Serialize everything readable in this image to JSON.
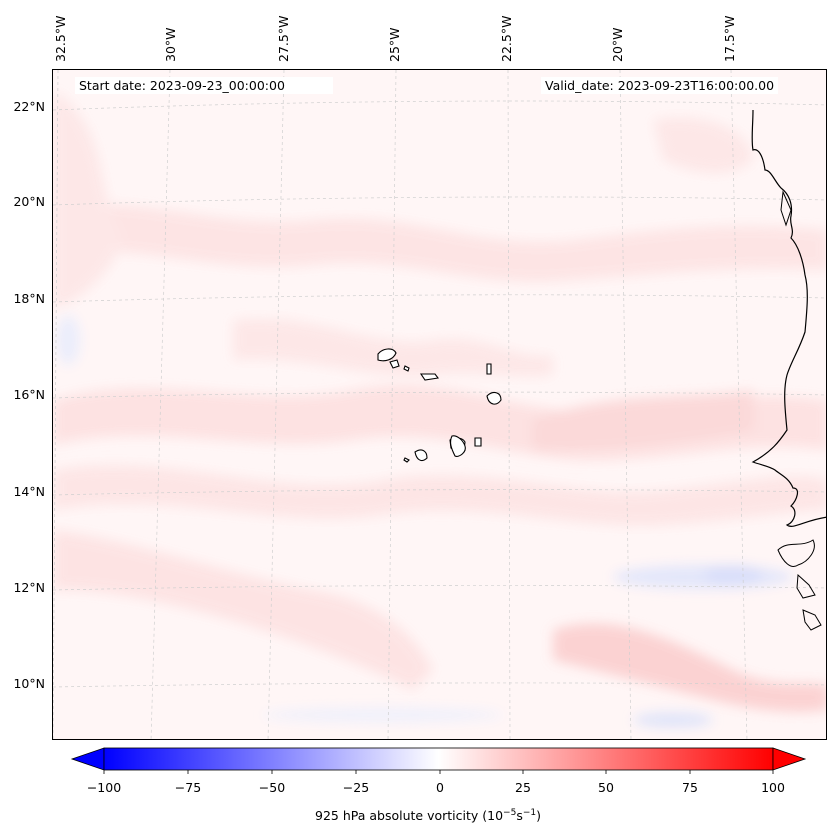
{
  "header": {
    "start_date": "Start date: 2023-09-23_00:00:00",
    "valid_date": "Valid_date: 2023-09-23T16:00:00.00"
  },
  "longitude_labels": [
    "32.5°W",
    "30°W",
    "27.5°W",
    "25°W",
    "22.5°W",
    "20°W",
    "17.5°W"
  ],
  "latitude_labels": [
    "22°N",
    "20°N",
    "18°N",
    "16°N",
    "14°N",
    "12°N",
    "10°N"
  ],
  "colorbar": {
    "ticks": [
      "−100",
      "−75",
      "−50",
      "−25",
      "0",
      "25",
      "50",
      "75",
      "100"
    ],
    "label_prefix": "925 hPa absolute vorticity (10",
    "label_exp1": "−5",
    "label_mid": "s",
    "label_exp2": "−1",
    "label_suffix": ")",
    "min": -100,
    "max": 100,
    "colors": {
      "low": "#0000ff",
      "mid": "#ffffff",
      "high": "#ff0000"
    }
  },
  "map": {
    "variable": "925 hPa absolute vorticity",
    "field_colors": {
      "background": "#fff5f5",
      "positive_band": "#fddede",
      "strong_positive": "#fbc4c4",
      "negative": "#e4e8fb"
    }
  }
}
